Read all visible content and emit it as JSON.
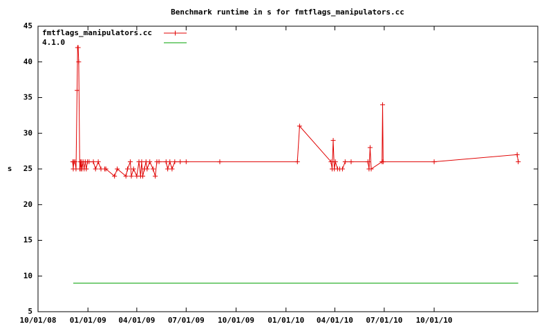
{
  "chart_data": {
    "type": "line",
    "title": "Benchmark runtime in s for fmtflags_manipulators.cc",
    "y_label": "s",
    "xlim": [
      "10/01/08",
      "04/10/11"
    ],
    "xticks": [
      "10/01/08",
      "01/01/09",
      "04/01/09",
      "07/01/09",
      "10/01/09",
      "01/01/10",
      "04/01/10",
      "07/01/10",
      "10/01/10"
    ],
    "ylim": [
      5,
      45
    ],
    "yticks": [
      5,
      10,
      15,
      20,
      25,
      30,
      35,
      40,
      45
    ],
    "legend": "top-left",
    "series": [
      {
        "name": "fmtflags_manipulators.cc",
        "color": "#e00000",
        "markers": true,
        "x": [
          "12/04/08",
          "12/05/08",
          "12/06/08",
          "12/08/08",
          "12/10/08",
          "12/12/08",
          "12/13/08",
          "12/14/08",
          "12/15/08",
          "12/17/08",
          "12/18/08",
          "12/19/08",
          "12/20/08",
          "12/21/08",
          "12/23/08",
          "12/25/08",
          "12/27/08",
          "12/29/08",
          "12/31/08",
          "01/03/09",
          "01/11/09",
          "01/15/09",
          "01/20/09",
          "01/25/09",
          "02/01/09",
          "02/03/09",
          "02/19/09",
          "02/24/09",
          "03/12/09",
          "03/15/09",
          "03/20/09",
          "03/22/09",
          "03/26/09",
          "04/01/09",
          "04/05/09",
          "04/08/09",
          "04/10/09",
          "04/12/09",
          "04/15/09",
          "04/18/09",
          "04/20/09",
          "04/25/09",
          "05/01/09",
          "05/05/09",
          "05/08/09",
          "05/12/09",
          "05/25/09",
          "05/28/09",
          "06/01/09",
          "06/05/09",
          "06/10/09",
          "06/20/09",
          "07/01/09",
          "09/01/09",
          "01/22/10",
          "01/26/10",
          "03/25/10",
          "03/27/10",
          "03/29/10",
          "03/31/10",
          "04/02/10",
          "04/06/10",
          "04/10/10",
          "04/15/10",
          "04/20/10",
          "05/01/10",
          "06/01/10",
          "06/03/10",
          "06/05/10",
          "06/07/10",
          "06/27/10",
          "06/28/10",
          "06/29/10",
          "10/01/10",
          "03/03/11",
          "03/05/11"
        ],
        "values": [
          26,
          25,
          26,
          26,
          25,
          36,
          42,
          42,
          40,
          25,
          26,
          25,
          26,
          25,
          26,
          25,
          26,
          25,
          26,
          26,
          26,
          25,
          26,
          25,
          25,
          25,
          24,
          25,
          24,
          25,
          26,
          24,
          25,
          24,
          26,
          24,
          26,
          24,
          25,
          26,
          25,
          26,
          25,
          24,
          26,
          26,
          26,
          25,
          26,
          25,
          26,
          26,
          26,
          26,
          26,
          31,
          26,
          25,
          29,
          25,
          26,
          25,
          25,
          25,
          26,
          26,
          26,
          25,
          28,
          25,
          26,
          34,
          26,
          26,
          27,
          26
        ]
      },
      {
        "name": "4.1.0",
        "color": "#00a000",
        "markers": false,
        "x": [
          "12/05/08",
          "03/05/11"
        ],
        "values": [
          9,
          9
        ]
      }
    ]
  }
}
